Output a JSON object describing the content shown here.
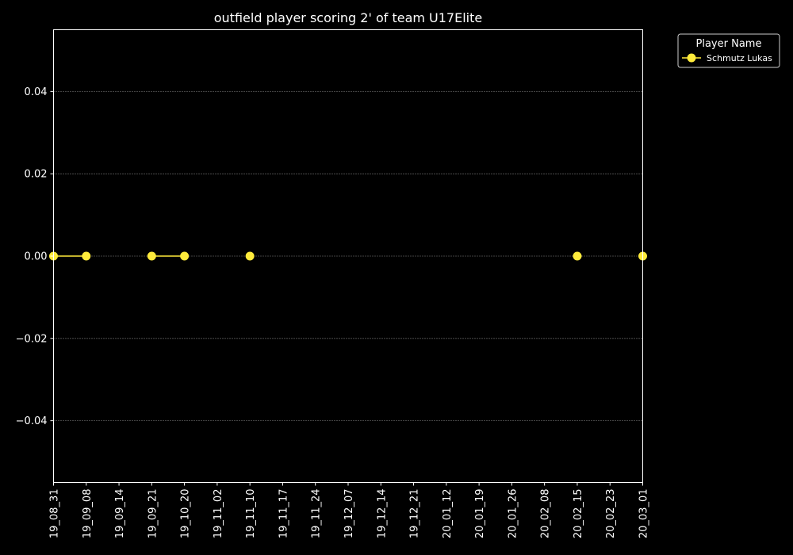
{
  "chart_data": {
    "type": "line",
    "title": "outfield player scoring 2' of team U17Elite",
    "xlabel": "",
    "ylabel": "",
    "x_tick_labels": [
      "19_08_31",
      "19_09_08",
      "19_09_14",
      "19_09_21",
      "19_10_20",
      "19_11_02",
      "19_11_10",
      "19_11_17",
      "19_11_24",
      "19_12_07",
      "19_12_14",
      "19_12_21",
      "20_01_12",
      "20_01_19",
      "20_01_26",
      "20_02_08",
      "20_02_15",
      "20_02_23",
      "20_03_01"
    ],
    "y_ticks": [
      -0.04,
      -0.02,
      0.0,
      0.02,
      0.04
    ],
    "y_tick_labels": [
      "−0.04",
      "−0.02",
      "0.00",
      "0.02",
      "0.04"
    ],
    "ylim": [
      -0.055,
      0.055
    ],
    "grid": "horizontal dotted",
    "legend": {
      "title": "Player Name",
      "placement": "top-right outside"
    },
    "series": [
      {
        "name": "Schmutz Lukas",
        "color": "#ffeb3b",
        "x": [
          "19_08_31",
          "19_09_08",
          "19_09_21",
          "19_10_20",
          "19_11_10",
          "20_02_15",
          "20_03_01"
        ],
        "values": [
          0,
          0,
          0,
          0,
          0,
          0,
          0
        ],
        "segments": [
          [
            0,
            1
          ],
          [
            2,
            3
          ]
        ]
      }
    ]
  }
}
